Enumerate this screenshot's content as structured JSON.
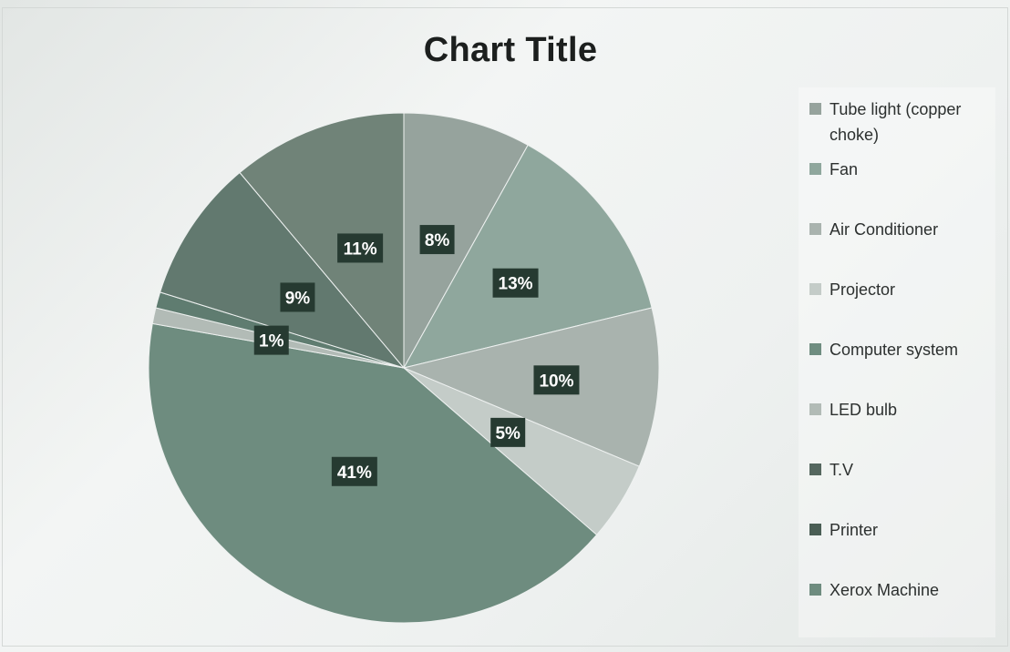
{
  "chart_data": {
    "type": "pie",
    "title": "Chart Title",
    "legend_position": "right",
    "series": [
      {
        "name": "Tube light (copper choke)",
        "color": "#96a39d"
      },
      {
        "name": "Fan",
        "color": "#8fa79d"
      },
      {
        "name": "Air Conditioner",
        "color": "#a9b3ae"
      },
      {
        "name": "Projector",
        "color": "#c4ccc8"
      },
      {
        "name": "Computer system",
        "color": "#6f8d80"
      },
      {
        "name": "LED bulb",
        "color": "#b2bbb6"
      },
      {
        "name": "T.V",
        "color": "#55675f"
      },
      {
        "name": "Printer",
        "color": "#4a5e55"
      },
      {
        "name": "Xerox Machine",
        "color": "#6e8c7f"
      }
    ],
    "slices": [
      {
        "value": 8,
        "label": "8%",
        "color": "#96a39d"
      },
      {
        "value": 13,
        "label": "13%",
        "color": "#8fa79d"
      },
      {
        "value": 10,
        "label": "10%",
        "color": "#a9b3ae"
      },
      {
        "value": 5,
        "label": "5%",
        "color": "#c4ccc8"
      },
      {
        "value": 41,
        "label": "41%",
        "color": "#6e8c7f"
      },
      {
        "value": 1,
        "label": "1%",
        "color": "#b2bbb6"
      },
      {
        "value": 1,
        "label": "",
        "color": "#5f7c70"
      },
      {
        "value": 9,
        "label": "9%",
        "color": "#62796f"
      },
      {
        "value": 11,
        "label": "11%",
        "color": "#708378"
      }
    ]
  }
}
